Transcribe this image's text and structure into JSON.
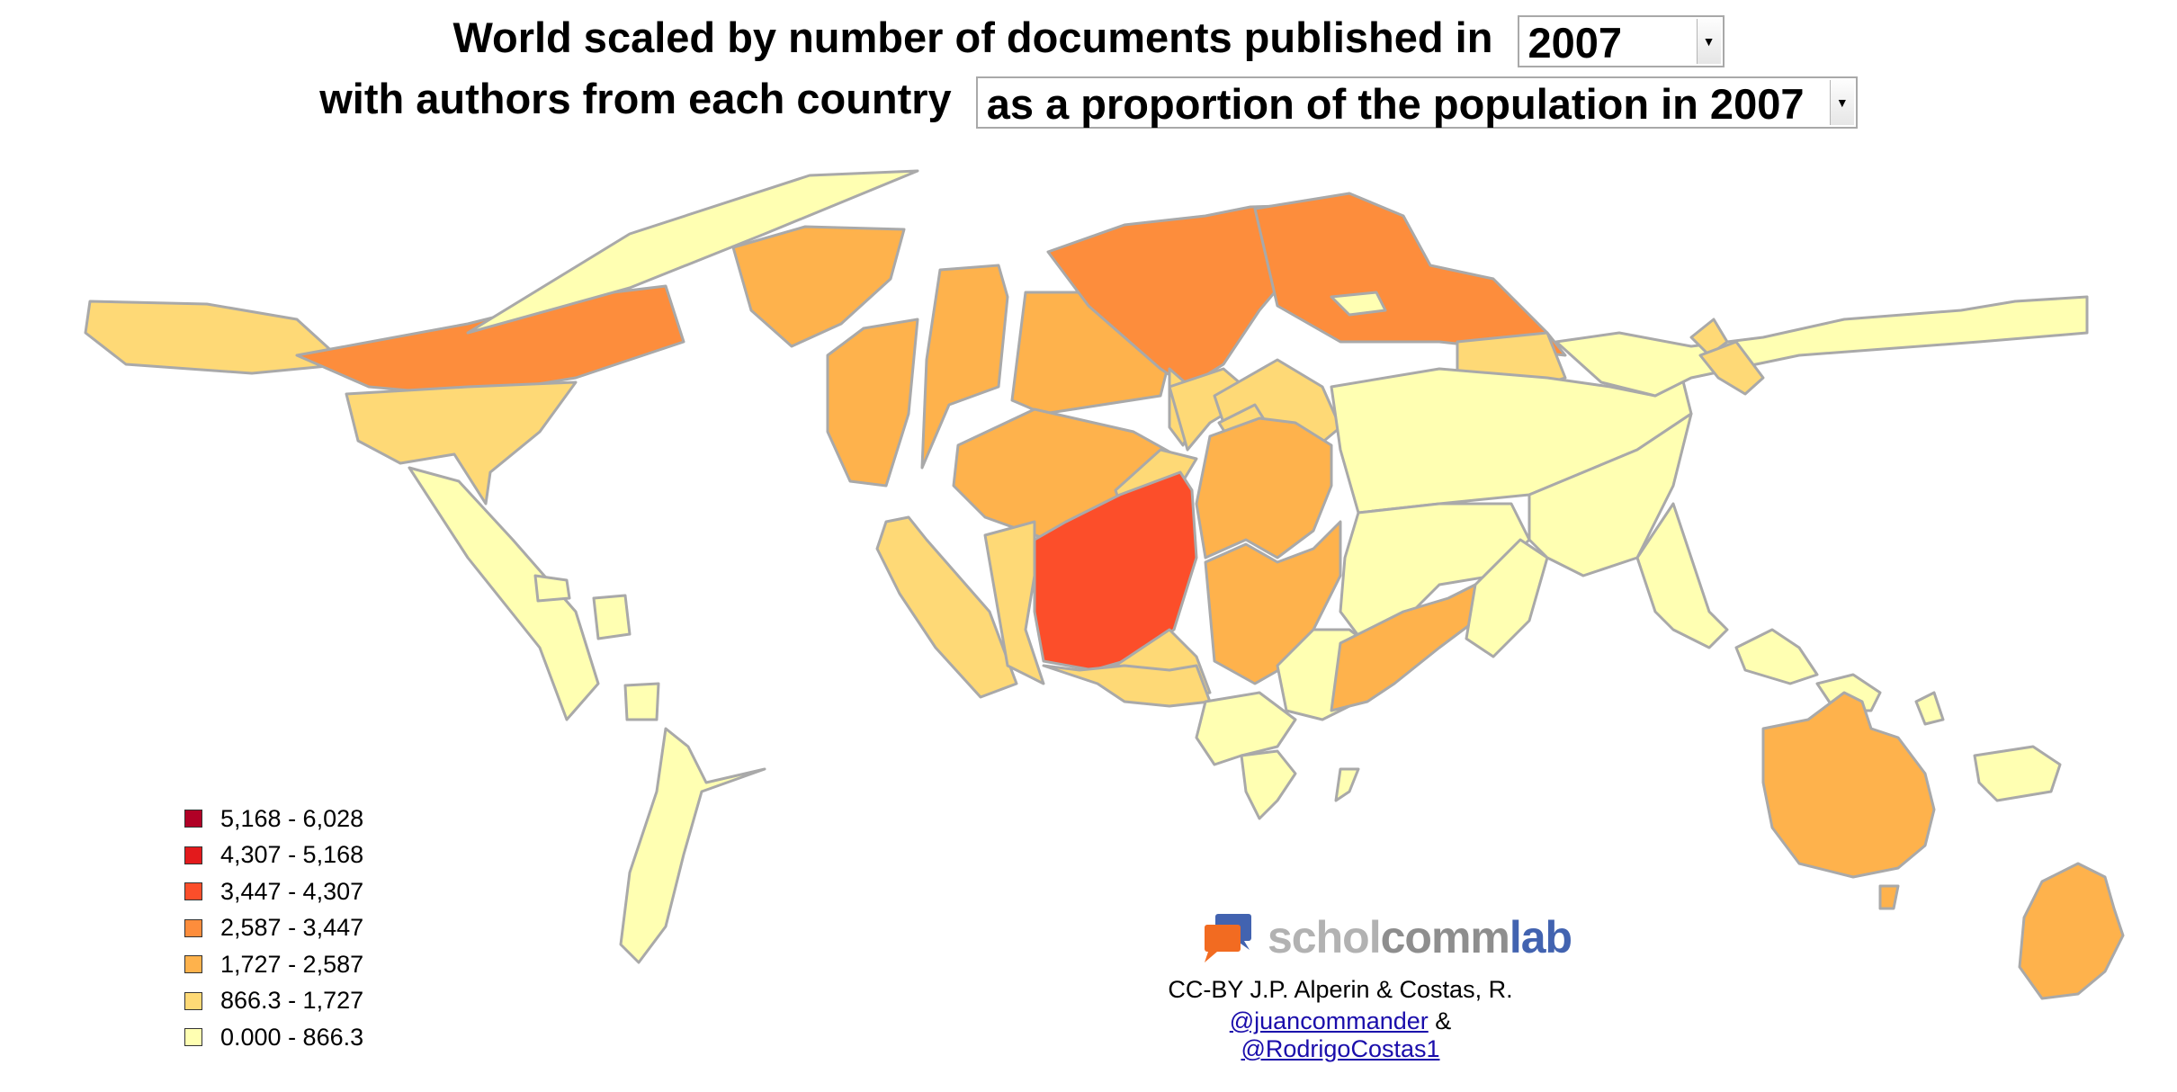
{
  "title": {
    "line1_text": "World scaled by number of documents published in",
    "year_value": "2007",
    "line2_text": "with authors from each country",
    "metric_value": "as a proportion of the population in 2007"
  },
  "legend": [
    {
      "label": "5,168 - 6,028",
      "color": "#b10026"
    },
    {
      "label": "4,307 - 5,168",
      "color": "#e31a1c"
    },
    {
      "label": "3,447 - 4,307",
      "color": "#fc4e2a"
    },
    {
      "label": "2,587 - 3,447",
      "color": "#fd8d3c"
    },
    {
      "label": "1,727 - 2,587",
      "color": "#feb24c"
    },
    {
      "label": "866.3 - 1,727",
      "color": "#fed976"
    },
    {
      "label": "0.000 - 866.3",
      "color": "#ffffb2"
    }
  ],
  "colors": {
    "border": "#a9a9a9",
    "brand_dark": "#4263b0",
    "brand_orange": "#f26b21"
  },
  "brand": {
    "part1": "schol",
    "part2": "comm",
    "part3": "lab"
  },
  "credits": {
    "line1": "CC-BY J.P. Alperin & Costas, R.",
    "link1": "@juancommander",
    "separator": " & ",
    "link2": "@RodrigoCostas1"
  }
}
